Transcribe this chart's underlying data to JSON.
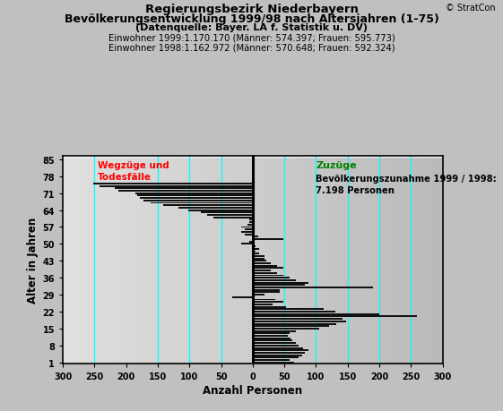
{
  "title_line1": "Regierungsbezirk Niederbayern",
  "title_line2": "Bevölkerungsentwicklung 1999/98 nach Altersjahren (1-75)",
  "title_line3": "(Datenquelle: Bayer. LA f. Statistik u. DV)",
  "subtitle1": "Einwohner 1999:1.170.170 (Männer: 574.397; Frauen: 595.773)",
  "subtitle2": "Einwohner 1998:1.162.972 (Männer: 570.648; Frauen: 592.324)",
  "copyright": "© StratCon",
  "xlabel": "Anzahl Personen",
  "ylabel": "Alter in Jahren",
  "left_label": "Wegzüge und\nTodesfälle",
  "right_label": "Zuzüge",
  "annotation": "Bevölkerungszunahme 1999 / 1998:\n7.198 Personen",
  "xlim": [
    -300,
    300
  ],
  "xticks": [
    -300,
    -250,
    -200,
    -150,
    -100,
    -50,
    0,
    50,
    100,
    150,
    200,
    250,
    300
  ],
  "xticklabels": [
    "300",
    "250",
    "200",
    "150",
    "100",
    "50",
    "0",
    "50",
    "100",
    "150",
    "200",
    "250",
    "300"
  ],
  "ytick_positions": [
    1,
    8,
    15,
    22,
    29,
    36,
    43,
    50,
    57,
    64,
    71,
    78,
    85
  ],
  "ytick_labels": [
    "1",
    "8",
    "15",
    "22",
    "29",
    "36",
    "43",
    "50",
    "57",
    "64",
    "71",
    "78",
    "85"
  ],
  "cyan_vlines": [
    -250,
    -150,
    -100,
    -50,
    50,
    100,
    150,
    200,
    250
  ],
  "bar_color": "#111111",
  "values": {
    "1": 65,
    "2": 58,
    "3": 72,
    "4": 78,
    "5": 82,
    "6": 88,
    "7": 80,
    "8": 73,
    "9": 68,
    "10": 63,
    "11": 60,
    "12": 55,
    "13": 58,
    "14": 68,
    "15": 105,
    "16": 120,
    "17": 132,
    "18": 148,
    "19": 142,
    "20": 260,
    "21": 200,
    "22": 130,
    "23": 112,
    "24": 52,
    "25": 32,
    "26": 48,
    "27": 36,
    "28": -32,
    "29": 18,
    "30": 42,
    "31": 42,
    "32": 190,
    "33": 82,
    "34": 88,
    "35": 68,
    "36": 58,
    "37": 48,
    "38": 38,
    "39": 28,
    "40": 48,
    "41": 38,
    "42": 28,
    "43": 22,
    "44": 18,
    "45": 18,
    "46": 10,
    "47": 5,
    "48": 10,
    "49": 5,
    "50": -18,
    "51": -5,
    "52": 48,
    "53": 8,
    "54": -12,
    "55": -18,
    "56": -12,
    "57": -18,
    "58": -8,
    "59": -5,
    "60": -5,
    "61": -62,
    "62": -72,
    "63": -82,
    "64": -102,
    "65": -118,
    "66": -142,
    "67": -162,
    "68": -172,
    "69": -178,
    "70": -182,
    "71": -185,
    "72": -212,
    "73": -218,
    "74": -242,
    "75": -252
  }
}
